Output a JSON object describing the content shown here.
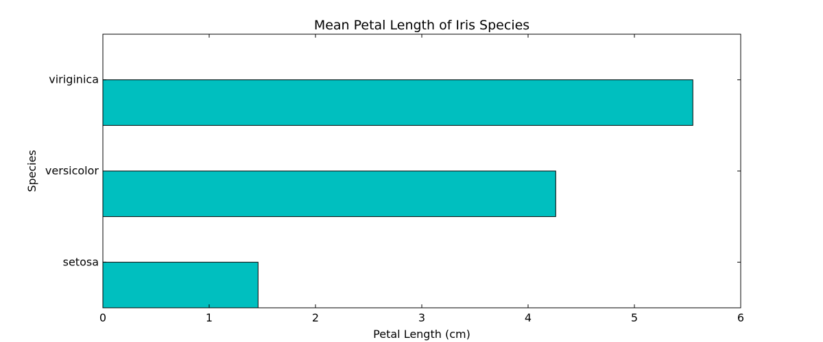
{
  "chart_data": {
    "type": "bar",
    "orientation": "horizontal",
    "title": "Mean Petal Length of Iris Species",
    "xlabel": "Petal Length (cm)",
    "ylabel": "Species",
    "categories": [
      "setosa",
      "versicolor",
      "viriginica"
    ],
    "values": [
      1.46,
      4.26,
      5.55
    ],
    "xlim": [
      0,
      6
    ],
    "xticks": [
      0,
      1,
      2,
      3,
      4,
      5,
      6
    ],
    "grid": false,
    "bar_color": "#00BFBF",
    "edge_color": "#000000"
  }
}
